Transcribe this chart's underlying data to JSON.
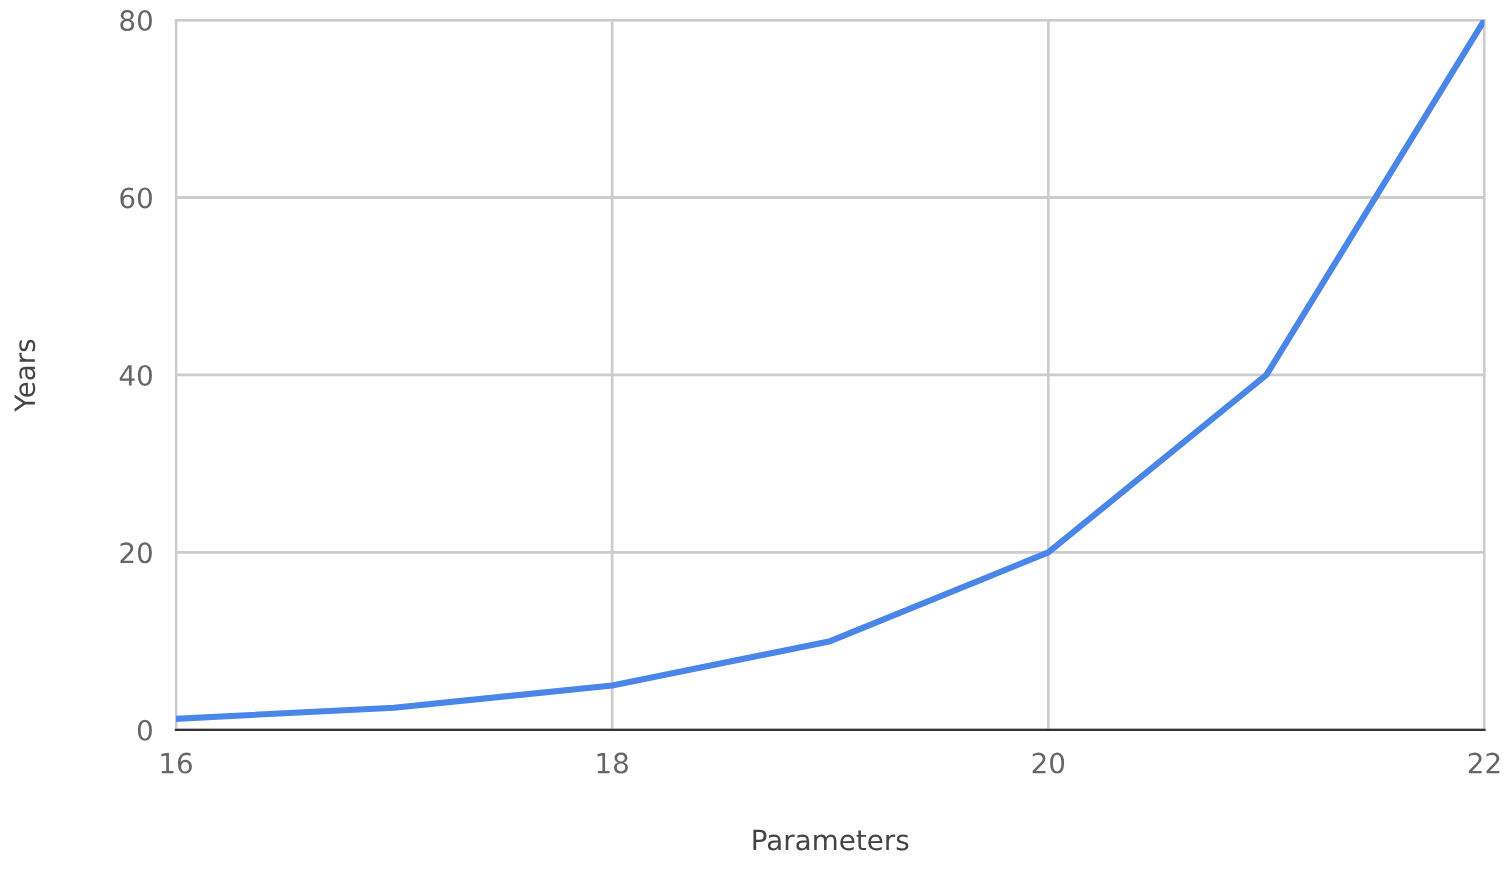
{
  "chart_data": {
    "type": "line",
    "xlabel": "Parameters",
    "ylabel": "Years",
    "x": [
      16,
      17,
      18,
      19,
      20,
      21,
      22
    ],
    "series": [
      {
        "color": "#4a86e8",
        "values": [
          1.25,
          2.5,
          5,
          10,
          20,
          40,
          80
        ]
      }
    ],
    "xlim": [
      16,
      22
    ],
    "ylim": [
      0,
      80
    ],
    "xticks": [
      16,
      18,
      20,
      22
    ],
    "yticks": [
      0,
      20,
      40,
      60,
      80
    ],
    "grid": true,
    "legend": false,
    "marker": "none",
    "line_style": "solid"
  }
}
